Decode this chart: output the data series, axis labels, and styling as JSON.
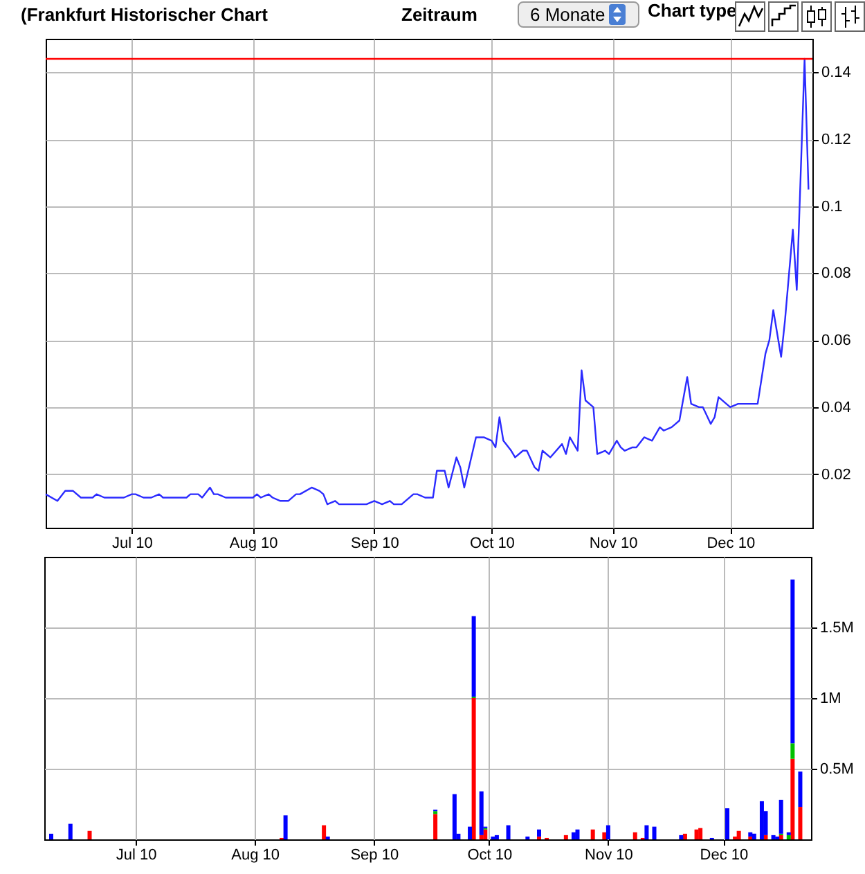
{
  "chart_data": [
    {
      "type": "line",
      "title": "(Frankfurt Historischer Chart",
      "annotations": [
        "Zeitraum",
        "6 Monate",
        "Chart type"
      ],
      "color": "#2b2bff",
      "grid": true,
      "x": [
        "2010-06-09",
        "2010-06-12",
        "2010-06-14",
        "2010-06-16",
        "2010-06-18",
        "2010-06-21",
        "2010-06-22",
        "2010-06-24",
        "2010-06-29",
        "2010-07-01",
        "2010-07-02",
        "2010-07-04",
        "2010-07-06",
        "2010-07-08",
        "2010-07-09",
        "2010-07-15",
        "2010-07-16",
        "2010-07-18",
        "2010-07-19",
        "2010-07-21",
        "2010-07-22",
        "2010-07-23",
        "2010-07-25",
        "2010-08-01",
        "2010-08-02",
        "2010-08-03",
        "2010-08-05",
        "2010-08-06",
        "2010-08-08",
        "2010-08-10",
        "2010-08-12",
        "2010-08-13",
        "2010-08-16",
        "2010-08-18",
        "2010-08-19",
        "2010-08-20",
        "2010-08-22",
        "2010-08-23",
        "2010-08-30",
        "2010-09-01",
        "2010-09-03",
        "2010-09-05",
        "2010-09-06",
        "2010-09-08",
        "2010-09-11",
        "2010-09-12",
        "2010-09-14",
        "2010-09-16",
        "2010-09-17",
        "2010-09-19",
        "2010-09-20",
        "2010-09-22",
        "2010-09-23",
        "2010-09-24",
        "2010-09-27",
        "2010-09-29",
        "2010-10-01",
        "2010-10-02",
        "2010-10-03",
        "2010-10-04",
        "2010-10-06",
        "2010-10-07",
        "2010-10-09",
        "2010-10-10",
        "2010-10-12",
        "2010-10-13",
        "2010-10-14",
        "2010-10-16",
        "2010-10-19",
        "2010-10-20",
        "2010-10-21",
        "2010-10-23",
        "2010-10-24",
        "2010-10-25",
        "2010-10-27",
        "2010-10-28",
        "2010-10-30",
        "2010-10-31",
        "2010-11-02",
        "2010-11-03",
        "2010-11-04",
        "2010-11-06",
        "2010-11-07",
        "2010-11-09",
        "2010-11-11",
        "2010-11-12",
        "2010-11-13",
        "2010-11-14",
        "2010-11-16",
        "2010-11-17",
        "2010-11-18",
        "2010-11-20",
        "2010-11-21",
        "2010-11-23",
        "2010-11-24",
        "2010-11-26",
        "2010-11-27",
        "2010-11-28",
        "2010-11-30",
        "2010-12-01",
        "2010-12-03",
        "2010-12-05",
        "2010-12-08",
        "2010-12-10",
        "2010-12-11",
        "2010-12-12",
        "2010-12-14",
        "2010-12-15",
        "2010-12-17",
        "2010-12-18",
        "2010-12-20",
        "2010-12-21"
      ],
      "values": [
        0.014,
        0.012,
        0.015,
        0.015,
        0.013,
        0.013,
        0.014,
        0.013,
        0.013,
        0.014,
        0.014,
        0.013,
        0.013,
        0.014,
        0.013,
        0.013,
        0.014,
        0.014,
        0.013,
        0.016,
        0.014,
        0.014,
        0.013,
        0.013,
        0.014,
        0.013,
        0.014,
        0.013,
        0.012,
        0.012,
        0.014,
        0.014,
        0.016,
        0.015,
        0.014,
        0.011,
        0.012,
        0.011,
        0.011,
        0.012,
        0.011,
        0.012,
        0.011,
        0.011,
        0.014,
        0.014,
        0.013,
        0.013,
        0.021,
        0.021,
        0.016,
        0.025,
        0.022,
        0.016,
        0.031,
        0.031,
        0.03,
        0.028,
        0.037,
        0.03,
        0.027,
        0.025,
        0.027,
        0.027,
        0.022,
        0.021,
        0.027,
        0.025,
        0.029,
        0.026,
        0.031,
        0.027,
        0.051,
        0.042,
        0.04,
        0.026,
        0.027,
        0.026,
        0.03,
        0.028,
        0.027,
        0.028,
        0.028,
        0.031,
        0.03,
        0.032,
        0.034,
        0.033,
        0.034,
        0.035,
        0.036,
        0.049,
        0.041,
        0.04,
        0.04,
        0.035,
        0.037,
        0.043,
        0.041,
        0.04,
        0.041,
        0.041,
        0.041,
        0.056,
        0.06,
        0.069,
        0.055,
        0.066,
        0.093,
        0.075,
        0.144,
        0.105
      ],
      "xlim": [
        "2010-06-09",
        "2010-12-22"
      ],
      "xticks": [
        {
          "value": "2010-07-01",
          "label": "Jul 10"
        },
        {
          "value": "2010-08-01",
          "label": "Aug 10"
        },
        {
          "value": "2010-09-01",
          "label": "Sep 10"
        },
        {
          "value": "2010-10-01",
          "label": "Oct 10"
        },
        {
          "value": "2010-11-01",
          "label": "Nov 10"
        },
        {
          "value": "2010-12-01",
          "label": "Dec 10"
        }
      ],
      "ylim": [
        0.004,
        0.15
      ],
      "yticks": [
        0.02,
        0.04,
        0.06,
        0.08,
        0.1,
        0.12,
        0.14
      ],
      "ref_lines": [
        {
          "axis": "y",
          "value": 0.144,
          "color": "#ff0000"
        }
      ]
    },
    {
      "type": "bar",
      "stacked": true,
      "grid": true,
      "x": [
        "2010-06-09",
        "2010-06-14",
        "2010-06-19",
        "2010-08-08",
        "2010-08-09",
        "2010-08-19",
        "2010-08-20",
        "2010-09-17",
        "2010-09-22",
        "2010-09-23",
        "2010-09-26",
        "2010-09-27",
        "2010-09-29",
        "2010-09-30",
        "2010-10-02",
        "2010-10-03",
        "2010-10-06",
        "2010-10-11",
        "2010-10-14",
        "2010-10-16",
        "2010-10-21",
        "2010-10-23",
        "2010-10-24",
        "2010-10-28",
        "2010-10-31",
        "2010-11-01",
        "2010-11-08",
        "2010-11-10",
        "2010-11-11",
        "2010-11-13",
        "2010-11-20",
        "2010-11-21",
        "2010-11-24",
        "2010-11-25",
        "2010-11-28",
        "2010-12-02",
        "2010-12-04",
        "2010-12-05",
        "2010-12-08",
        "2010-12-09",
        "2010-12-11",
        "2010-12-12",
        "2010-12-14",
        "2010-12-15",
        "2010-12-16",
        "2010-12-18",
        "2010-12-19",
        "2010-12-21"
      ],
      "series": [
        {
          "color": "#ff0000",
          "values": [
            null,
            null,
            60000,
            10000,
            null,
            100000,
            null,
            180000,
            null,
            null,
            null,
            1000000,
            30000,
            70000,
            null,
            null,
            null,
            null,
            20000,
            10000,
            30000,
            null,
            null,
            70000,
            50000,
            null,
            50000,
            10000,
            null,
            null,
            null,
            40000,
            70000,
            80000,
            null,
            null,
            20000,
            60000,
            20000,
            null,
            null,
            30000,
            null,
            null,
            30000,
            null,
            570000,
            230000
          ]
        },
        {
          "color": "#00c000",
          "values": [
            null,
            null,
            null,
            null,
            null,
            null,
            null,
            20000,
            null,
            null,
            null,
            10000,
            null,
            10000,
            null,
            null,
            null,
            null,
            null,
            null,
            null,
            null,
            null,
            null,
            null,
            null,
            null,
            null,
            null,
            null,
            null,
            null,
            null,
            null,
            null,
            null,
            null,
            null,
            null,
            null,
            null,
            null,
            null,
            null,
            10000,
            30000,
            110000,
            null
          ]
        },
        {
          "color": "#0000ff",
          "values": [
            40000,
            110000,
            null,
            null,
            170000,
            null,
            20000,
            10000,
            320000,
            40000,
            90000,
            570000,
            310000,
            10000,
            20000,
            30000,
            100000,
            20000,
            50000,
            null,
            null,
            50000,
            70000,
            null,
            null,
            100000,
            null,
            null,
            100000,
            90000,
            30000,
            null,
            null,
            null,
            10000,
            220000,
            null,
            null,
            30000,
            40000,
            270000,
            170000,
            30000,
            20000,
            240000,
            20000,
            1160000,
            250000
          ]
        }
      ],
      "xlim": [
        "2010-06-09",
        "2010-12-22"
      ],
      "xticks": [
        {
          "value": "2010-07-01",
          "label": "Jul 10"
        },
        {
          "value": "2010-08-01",
          "label": "Aug 10"
        },
        {
          "value": "2010-09-01",
          "label": "Sep 10"
        },
        {
          "value": "2010-10-01",
          "label": "Oct 10"
        },
        {
          "value": "2010-11-01",
          "label": "Nov 10"
        },
        {
          "value": "2010-12-01",
          "label": "Dec 10"
        }
      ],
      "ylim": [
        0,
        2000000
      ],
      "yticks": [
        {
          "value": 500000,
          "label": "0.5M"
        },
        {
          "value": 1000000,
          "label": "1M"
        },
        {
          "value": 1500000,
          "label": "1.5M"
        }
      ]
    }
  ]
}
